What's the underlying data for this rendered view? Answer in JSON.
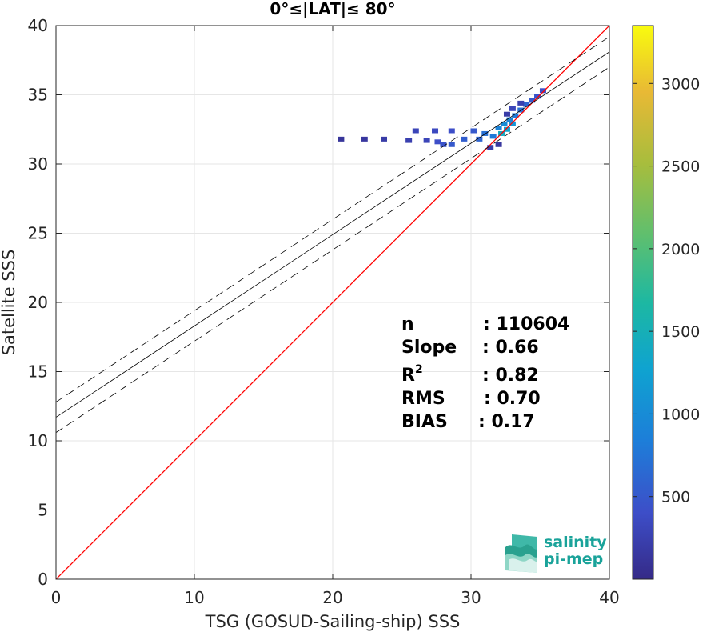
{
  "chart_data": {
    "type": "scatter",
    "title": "0°≤|LAT|≤ 80°",
    "xlabel": "TSG (GOSUD-Sailing-ship) SSS",
    "ylabel": "Satellite SSS",
    "xlim": [
      0,
      40
    ],
    "ylim": [
      0,
      40
    ],
    "xticks": [
      0,
      10,
      20,
      30,
      40
    ],
    "yticks": [
      0,
      5,
      10,
      15,
      20,
      25,
      30,
      35,
      40
    ],
    "grid": true,
    "identity_line": {
      "color": "#ff0000",
      "points": [
        [
          0,
          0
        ],
        [
          40,
          40
        ]
      ]
    },
    "regression_line": {
      "intercept": 11.7,
      "slope": 0.66,
      "color": "#000000"
    },
    "regression_band_offset": 1.1,
    "density_points": [
      {
        "x": 20.6,
        "y": 31.8,
        "count": 120
      },
      {
        "x": 22.3,
        "y": 31.8,
        "count": 150
      },
      {
        "x": 23.7,
        "y": 31.8,
        "count": 200
      },
      {
        "x": 25.5,
        "y": 31.7,
        "count": 250
      },
      {
        "x": 26.8,
        "y": 31.7,
        "count": 300
      },
      {
        "x": 27.6,
        "y": 31.6,
        "count": 400
      },
      {
        "x": 28.0,
        "y": 31.4,
        "count": 450
      },
      {
        "x": 28.6,
        "y": 31.4,
        "count": 500
      },
      {
        "x": 29.5,
        "y": 31.8,
        "count": 550
      },
      {
        "x": 30.6,
        "y": 31.8,
        "count": 600
      },
      {
        "x": 26.0,
        "y": 32.4,
        "count": 300
      },
      {
        "x": 27.4,
        "y": 32.4,
        "count": 350
      },
      {
        "x": 28.6,
        "y": 32.4,
        "count": 400
      },
      {
        "x": 30.2,
        "y": 32.4,
        "count": 500
      },
      {
        "x": 31.0,
        "y": 32.2,
        "count": 700
      },
      {
        "x": 31.6,
        "y": 32.0,
        "count": 800
      },
      {
        "x": 32.0,
        "y": 32.6,
        "count": 900
      },
      {
        "x": 32.4,
        "y": 32.9,
        "count": 1000
      },
      {
        "x": 32.8,
        "y": 33.2,
        "count": 900
      },
      {
        "x": 33.2,
        "y": 33.5,
        "count": 800
      },
      {
        "x": 33.6,
        "y": 33.9,
        "count": 700
      },
      {
        "x": 34.0,
        "y": 34.3,
        "count": 600
      },
      {
        "x": 34.4,
        "y": 34.6,
        "count": 500
      },
      {
        "x": 34.8,
        "y": 34.9,
        "count": 450
      },
      {
        "x": 35.2,
        "y": 35.3,
        "count": 400
      },
      {
        "x": 33.0,
        "y": 34.0,
        "count": 300
      },
      {
        "x": 33.6,
        "y": 34.4,
        "count": 250
      },
      {
        "x": 32.6,
        "y": 33.6,
        "count": 200
      },
      {
        "x": 32.0,
        "y": 31.4,
        "count": 150
      },
      {
        "x": 31.4,
        "y": 31.2,
        "count": 200
      },
      {
        "x": 32.2,
        "y": 32.2,
        "count": 1400
      },
      {
        "x": 32.6,
        "y": 32.5,
        "count": 1300
      },
      {
        "x": 33.0,
        "y": 32.9,
        "count": 1100
      }
    ],
    "colorbar": {
      "min": 0,
      "max": 3350,
      "ticks": [
        500,
        1000,
        1500,
        2000,
        2500,
        3000
      ],
      "colormap": "parula"
    },
    "annotations": [
      {
        "label": "n",
        "value": ": 110604"
      },
      {
        "label": "Slope",
        "value": ": 0.66"
      },
      {
        "label": "R",
        "sup": "2",
        "value": ": 0.82"
      },
      {
        "label": "RMS",
        "value": ": 0.70"
      },
      {
        "label": "BIAS",
        "value": ": 0.17"
      }
    ]
  },
  "logo": {
    "line1": "salinity",
    "line2": "pi-mep"
  }
}
